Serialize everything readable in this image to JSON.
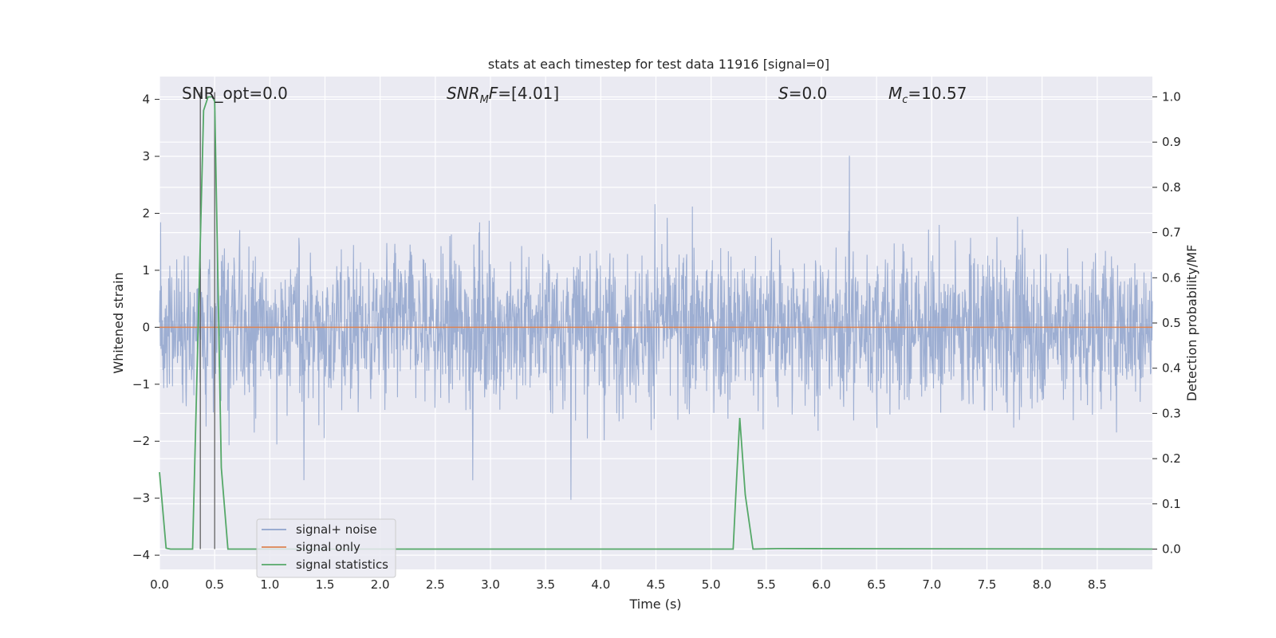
{
  "chart_data": {
    "type": "line",
    "title": "stats at each timestep for test data 11916 [signal=0]",
    "xlabel": "Time (s)",
    "ylabel": "Whitened strain",
    "ylabel_right": "Detection probability/MF",
    "xlim": [
      0.0,
      9.0
    ],
    "ylim": [
      -4.25,
      4.4
    ],
    "ylim_right": [
      -0.045,
      1.045
    ],
    "x_ticks": [
      "0.0",
      "0.5",
      "1.0",
      "1.5",
      "2.0",
      "2.5",
      "3.0",
      "3.5",
      "4.0",
      "4.5",
      "5.0",
      "5.5",
      "6.0",
      "6.5",
      "7.0",
      "7.5",
      "8.0",
      "8.5"
    ],
    "y_ticks": [
      "4",
      "3",
      "2",
      "1",
      "0",
      "−1",
      "−2",
      "−3",
      "−4"
    ],
    "y_right_ticks": [
      "1.0",
      "0.9",
      "0.8",
      "0.7",
      "0.6",
      "0.5",
      "0.4",
      "0.3",
      "0.2",
      "0.1",
      "0.0"
    ],
    "grid": true,
    "legend_position": "lower-left",
    "annotations": {
      "snr_opt": "SNR_opt=0.0",
      "snr_mf_sym": "SNR",
      "snr_mf_sub": "M",
      "snr_mf_sym2": "F",
      "snr_mf_value": "=[4.01]",
      "s_sym": "S",
      "s_value": "=0.0",
      "mc_sym": "M",
      "mc_sub": "c",
      "mc_value": "=10.57"
    },
    "vertical_markers": [
      0.37,
      0.5
    ],
    "series": [
      {
        "name": "signal+ noise",
        "color": "#8fa3cc",
        "note_values": "dense whitened noise trace; envelope approx ±2 with spikes up to ~4 and down to ~-3.7"
      },
      {
        "name": "signal only",
        "color": "#dd8452",
        "x": [
          0.0,
          9.0
        ],
        "y": [
          0.0,
          0.0
        ]
      },
      {
        "name": "signal statistics",
        "color": "#55a868",
        "axis": "right",
        "x": [
          0.0,
          0.06,
          0.1,
          0.3,
          0.4,
          0.44,
          0.48,
          0.5,
          0.56,
          0.62,
          5.2,
          5.23,
          5.26,
          5.31,
          5.38,
          5.6,
          9.0
        ],
        "y": [
          0.17,
          0.002,
          0.0,
          0.0,
          0.97,
          1.0,
          1.0,
          0.99,
          0.18,
          0.0,
          0.0,
          0.15,
          0.29,
          0.12,
          0.0,
          0.001,
          0.0
        ]
      }
    ]
  }
}
